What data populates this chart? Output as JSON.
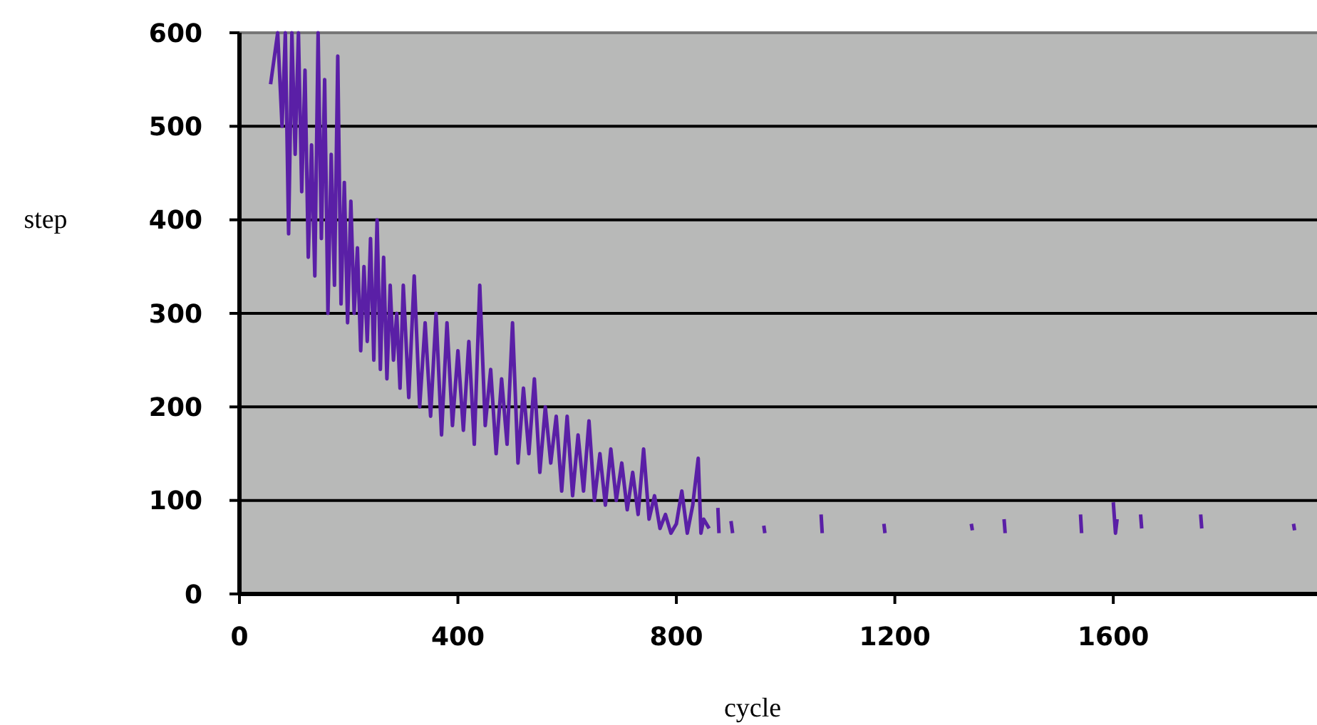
{
  "chart_data": {
    "type": "line",
    "xlabel": "cycle",
    "ylabel": "step",
    "xlim": [
      0,
      1973
    ],
    "ylim": [
      0,
      600
    ],
    "xticks": [
      0,
      400,
      800,
      1200,
      1600
    ],
    "yticks": [
      0,
      100,
      200,
      300,
      400,
      500,
      600
    ],
    "grid": "y",
    "series": [
      {
        "color": "#5a1fa6",
        "x": [
          57,
          70,
          78,
          84,
          90,
          96,
          102,
          108,
          114,
          120,
          126,
          132,
          138,
          144,
          150,
          156,
          162,
          168,
          174,
          180,
          186,
          192,
          198,
          204,
          210,
          216,
          222,
          228,
          234,
          240,
          246,
          252,
          258,
          264,
          270,
          276,
          282,
          288,
          294,
          300,
          310,
          320,
          330,
          340,
          350,
          360,
          370,
          380,
          390,
          400,
          410,
          420,
          430,
          440,
          450,
          460,
          470,
          480,
          490,
          500,
          510,
          520,
          530,
          540,
          550,
          560,
          570,
          580,
          590,
          600,
          610,
          620,
          630,
          640,
          650,
          660,
          670,
          680,
          690,
          700,
          710,
          720,
          730,
          740,
          750,
          760,
          770,
          780,
          790,
          800,
          810,
          820,
          830,
          840,
          845,
          850,
          860,
          868,
          876,
          878,
          889,
          900,
          903,
          930,
          960,
          962,
          980,
          1065,
          1067,
          1080,
          1180,
          1182,
          1200,
          1340,
          1342,
          1360,
          1400,
          1402,
          1430,
          1540,
          1542,
          1570,
          1600,
          1604,
          1607,
          1630,
          1650,
          1652,
          1700,
          1760,
          1762,
          1800,
          1930,
          1932
        ],
        "values": [
          545,
          600,
          500,
          600,
          385,
          600,
          470,
          600,
          430,
          560,
          360,
          480,
          340,
          600,
          380,
          550,
          300,
          470,
          330,
          575,
          310,
          440,
          290,
          420,
          300,
          370,
          260,
          350,
          270,
          380,
          250,
          400,
          240,
          360,
          230,
          330,
          250,
          300,
          220,
          330,
          210,
          340,
          200,
          290,
          190,
          300,
          170,
          290,
          180,
          260,
          175,
          270,
          160,
          330,
          180,
          240,
          150,
          230,
          160,
          290,
          140,
          220,
          150,
          230,
          130,
          200,
          140,
          190,
          110,
          190,
          105,
          170,
          110,
          185,
          100,
          150,
          95,
          155,
          100,
          140,
          90,
          130,
          85,
          155,
          80,
          105,
          70,
          85,
          65,
          75,
          110,
          65,
          95,
          145,
          65,
          80,
          70,
          null,
          92,
          65,
          null,
          78,
          65,
          null,
          73,
          65,
          null,
          85,
          65,
          null,
          75,
          65,
          null,
          75,
          68,
          null,
          80,
          65,
          null,
          85,
          65,
          null,
          98,
          65,
          80,
          null,
          85,
          70,
          null,
          85,
          70,
          null,
          75,
          68
        ]
      }
    ]
  }
}
